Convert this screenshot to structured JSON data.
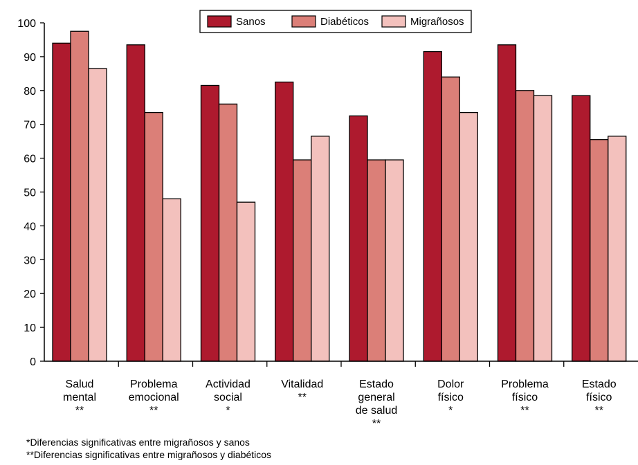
{
  "chart_data": {
    "type": "bar",
    "ylim": [
      0,
      100
    ],
    "yticks": [
      "0",
      "10",
      "20",
      "30",
      "40",
      "50",
      "60",
      "70",
      "80",
      "90",
      "100"
    ],
    "grid": false,
    "legend_position": "top",
    "categories": [
      {
        "lines": [
          "Salud",
          "mental",
          "**"
        ]
      },
      {
        "lines": [
          "Problema",
          "emocional",
          "**"
        ]
      },
      {
        "lines": [
          "Actividad",
          "social",
          "*"
        ]
      },
      {
        "lines": [
          "Vitalidad",
          "**"
        ]
      },
      {
        "lines": [
          "Estado",
          "general",
          "de salud",
          "**"
        ]
      },
      {
        "lines": [
          "Dolor",
          "físico",
          "*"
        ]
      },
      {
        "lines": [
          "Problema",
          "físico",
          "**"
        ]
      },
      {
        "lines": [
          "Estado",
          "físico",
          "**"
        ]
      }
    ],
    "series": [
      {
        "name": "Sanos",
        "color": "#ae1a2e",
        "values": [
          94,
          93.5,
          81.5,
          82.5,
          72.5,
          91.5,
          93.5,
          78.5
        ]
      },
      {
        "name": "Diabéticos",
        "color": "#db7f78",
        "values": [
          97.5,
          73.5,
          76,
          59.5,
          59.5,
          84,
          80,
          65.5
        ]
      },
      {
        "name": "Migrañosos",
        "color": "#f3c1bd",
        "values": [
          86.5,
          48,
          47,
          66.5,
          59.5,
          73.5,
          78.5,
          66.5
        ]
      }
    ]
  },
  "footnotes": {
    "single": "*Diferencias significativas entre migrañosos y sanos",
    "double": "**Diferencias significativas entre migrañosos y diabéticos"
  }
}
